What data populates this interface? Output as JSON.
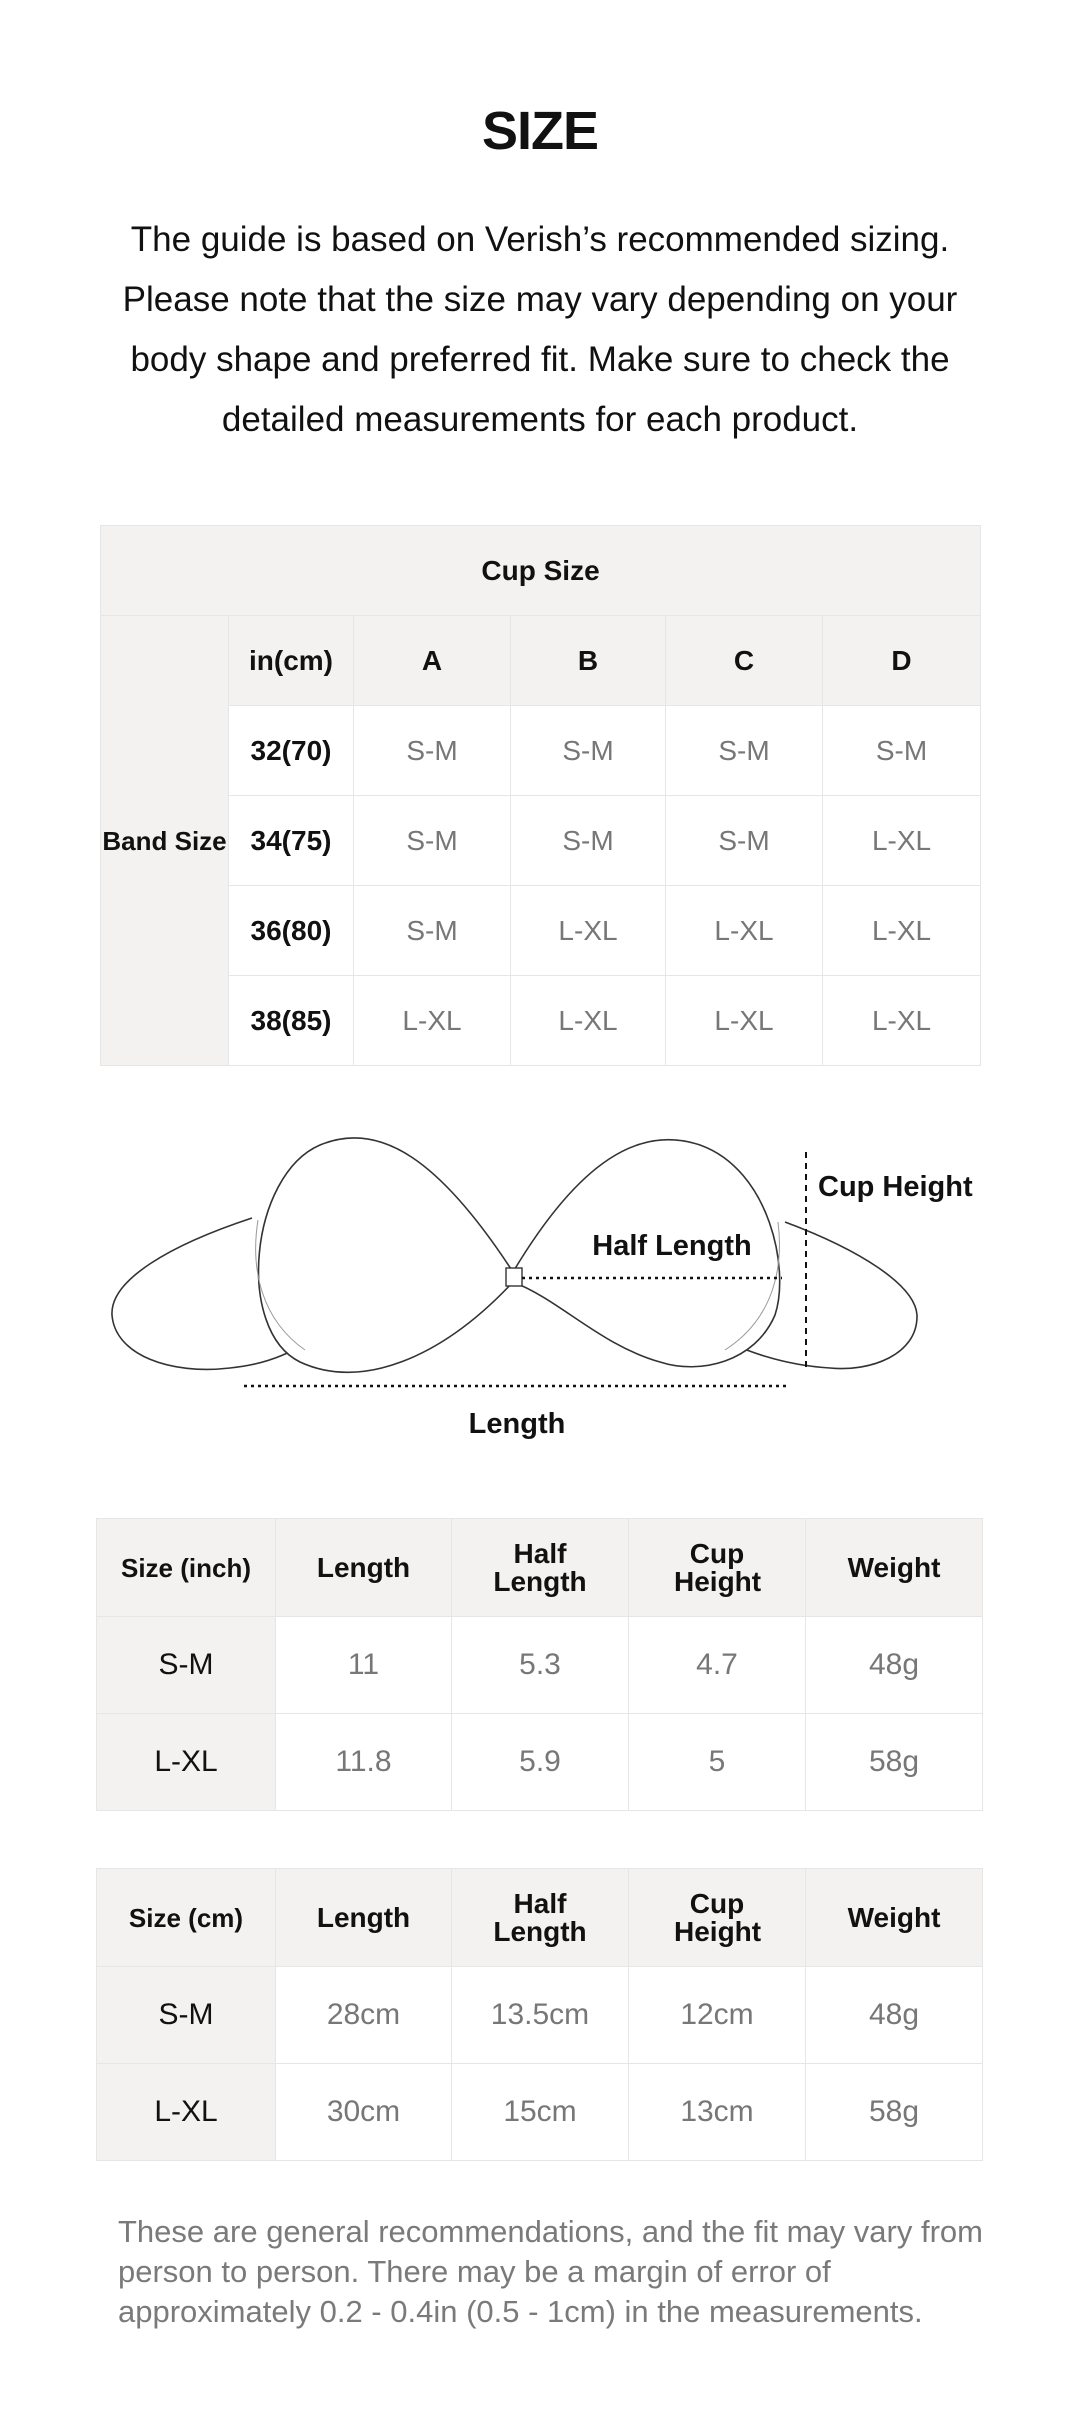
{
  "title": "SIZE",
  "intro": "The guide is based on Verish’s recommended sizing. Please note that the size may vary depending on your body shape and preferred fit. Make sure to check the detailed measurements for each product.",
  "cup_table": {
    "title": "Cup Size",
    "band_label": "Band Size",
    "unit_header": "in(cm)",
    "cups": [
      "A",
      "B",
      "C",
      "D"
    ],
    "rows": [
      {
        "band": "32(70)",
        "values": [
          "S-M",
          "S-M",
          "S-M",
          "S-M"
        ]
      },
      {
        "band": "34(75)",
        "values": [
          "S-M",
          "S-M",
          "S-M",
          "L-XL"
        ]
      },
      {
        "band": "36(80)",
        "values": [
          "S-M",
          "L-XL",
          "L-XL",
          "L-XL"
        ]
      },
      {
        "band": "38(85)",
        "values": [
          "L-XL",
          "L-XL",
          "L-XL",
          "L-XL"
        ]
      }
    ]
  },
  "diagram": {
    "cup_height": "Cup Height",
    "half_length": "Half Length",
    "length": "Length"
  },
  "inch_table": {
    "headers": [
      "Size (inch)",
      "Length",
      "Half Length",
      "Cup Height",
      "Weight"
    ],
    "rows": [
      [
        "S-M",
        "11",
        "5.3",
        "4.7",
        "48g"
      ],
      [
        "L-XL",
        "11.8",
        "5.9",
        "5",
        "58g"
      ]
    ]
  },
  "cm_table": {
    "headers": [
      "Size (cm)",
      "Length",
      "Half Length",
      "Cup Height",
      "Weight"
    ],
    "rows": [
      [
        "S-M",
        "28cm",
        "13.5cm",
        "12cm",
        "48g"
      ],
      [
        "L-XL",
        "30cm",
        "15cm",
        "13cm",
        "58g"
      ]
    ]
  },
  "note": "These are general recommendations, and the fit may vary from person to person. There may be a margin of error of approximately 0.2 - 0.4in (0.5 - 1cm) in the measurements."
}
